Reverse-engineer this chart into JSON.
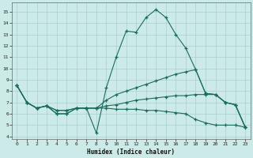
{
  "xlabel": "Humidex (Indice chaleur)",
  "background_color": "#cceae7",
  "grid_color": "#aacfcc",
  "line_color": "#1a6b5e",
  "xlim": [
    -0.5,
    23.5
  ],
  "ylim": [
    3.8,
    15.8
  ],
  "xticks": [
    0,
    1,
    2,
    3,
    4,
    5,
    6,
    7,
    8,
    9,
    10,
    11,
    12,
    13,
    14,
    15,
    16,
    17,
    18,
    19,
    20,
    21,
    22,
    23
  ],
  "yticks": [
    4,
    5,
    6,
    7,
    8,
    9,
    10,
    11,
    12,
    13,
    14,
    15
  ],
  "series1_y": [
    8.5,
    7.0,
    6.5,
    6.7,
    6.0,
    6.0,
    6.5,
    6.5,
    4.3,
    8.3,
    11.0,
    13.3,
    13.2,
    14.5,
    15.2,
    14.5,
    13.0,
    11.8,
    9.9,
    7.8,
    7.7,
    7.0,
    6.8,
    4.8
  ],
  "series2_y": [
    8.5,
    7.0,
    6.5,
    6.7,
    6.0,
    6.0,
    6.5,
    6.5,
    6.5,
    7.2,
    7.7,
    8.0,
    8.3,
    8.6,
    8.9,
    9.2,
    9.5,
    9.7,
    9.9,
    7.8,
    7.7,
    7.0,
    6.8,
    4.8
  ],
  "series3_y": [
    8.5,
    7.0,
    6.5,
    6.7,
    6.3,
    6.3,
    6.5,
    6.5,
    6.5,
    6.7,
    6.8,
    7.0,
    7.2,
    7.3,
    7.4,
    7.5,
    7.6,
    7.6,
    7.7,
    7.7,
    7.7,
    7.0,
    6.8,
    4.8
  ],
  "series4_y": [
    8.5,
    7.0,
    6.5,
    6.7,
    6.3,
    6.3,
    6.5,
    6.5,
    6.5,
    6.5,
    6.4,
    6.4,
    6.4,
    6.3,
    6.3,
    6.2,
    6.1,
    6.0,
    5.5,
    5.2,
    5.0,
    5.0,
    5.0,
    4.8
  ]
}
